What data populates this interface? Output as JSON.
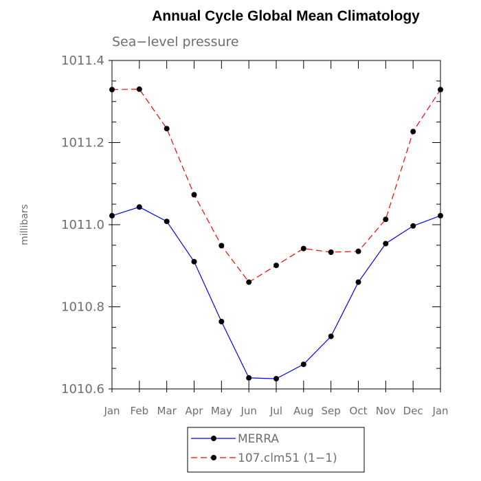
{
  "chart_data": {
    "type": "line",
    "title": "Annual Cycle Global Mean Climatology",
    "subtitle": "Sea−level pressure",
    "ylabel": "millibars",
    "xlabel": "",
    "categories": [
      "Jan",
      "Feb",
      "Mar",
      "Apr",
      "May",
      "Jun",
      "Jul",
      "Aug",
      "Sep",
      "Oct",
      "Nov",
      "Dec",
      "Jan"
    ],
    "ylim": [
      1010.6,
      1011.4
    ],
    "yticks": [
      "1010.6",
      "1010.8",
      "1011.0",
      "1011.2",
      "1011.4"
    ],
    "ytick_values": [
      1010.6,
      1010.8,
      1011.0,
      1011.2,
      1011.4
    ],
    "grid": false,
    "legend_position": "bottom-center",
    "series": [
      {
        "name": "MERRA",
        "color": "#0000ff",
        "dash": "solid",
        "values": [
          1011.022,
          1011.043,
          1011.008,
          1010.91,
          1010.764,
          1010.627,
          1010.625,
          1010.66,
          1010.728,
          1010.86,
          1010.954,
          1010.997,
          1011.022
        ]
      },
      {
        "name": "107.clm51 (1−1)",
        "color": "#ff0000",
        "dash": "dashed",
        "values": [
          1011.329,
          1011.33,
          1011.234,
          1011.073,
          1010.949,
          1010.86,
          1010.901,
          1010.942,
          1010.933,
          1010.935,
          1011.013,
          1011.227,
          1011.329
        ]
      }
    ]
  }
}
